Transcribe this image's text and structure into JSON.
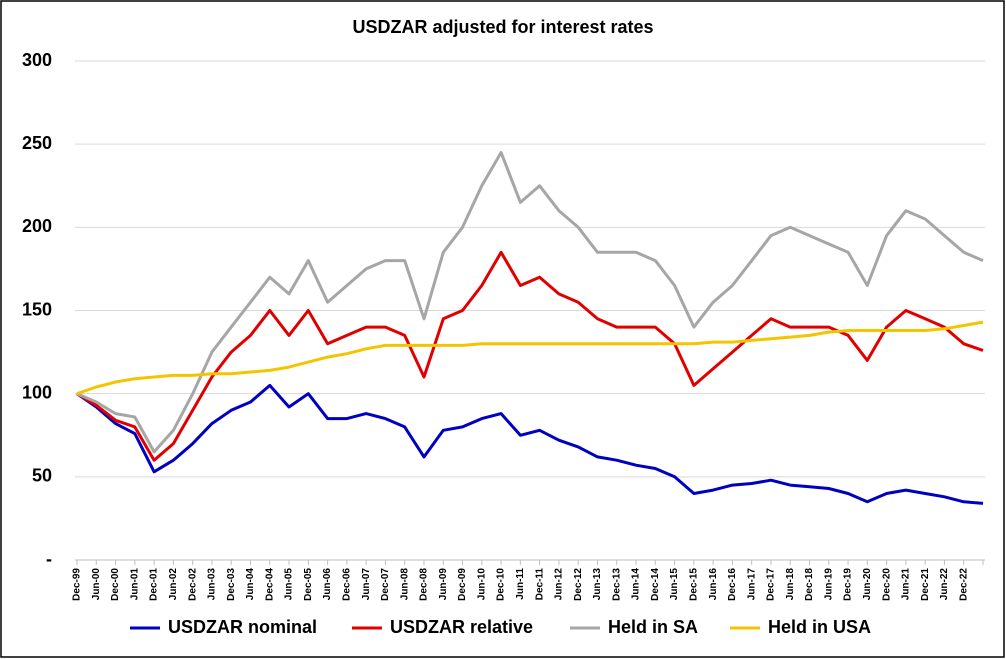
{
  "chart_data": {
    "type": "line",
    "title": "USDZAR adjusted for interest rates",
    "categories": [
      "Dec-99",
      "Jun-00",
      "Dec-00",
      "Jun-01",
      "Dec-01",
      "Jun-02",
      "Dec-02",
      "Jun-03",
      "Dec-03",
      "Jun-04",
      "Dec-04",
      "Jun-05",
      "Dec-05",
      "Jun-06",
      "Dec-06",
      "Jun-07",
      "Dec-07",
      "Jun-08",
      "Dec-08",
      "Jun-09",
      "Dec-09",
      "Jun-10",
      "Dec-10",
      "Jun-11",
      "Dec-11",
      "Jun-12",
      "Dec-12",
      "Jun-13",
      "Dec-13",
      "Jun-14",
      "Dec-14",
      "Jun-15",
      "Dec-15",
      "Jun-16",
      "Dec-16",
      "Jun-17",
      "Dec-17",
      "Jun-18",
      "Dec-18",
      "Jun-19",
      "Dec-19",
      "Jun-20",
      "Dec-20",
      "Jun-21",
      "Dec-21",
      "Jun-22",
      "Dec-22",
      null
    ],
    "series": [
      {
        "name": "USDZAR nominal",
        "color": "#0000c0",
        "values": [
          100,
          92,
          82,
          76,
          53,
          60,
          70,
          82,
          90,
          95,
          105,
          92,
          100,
          85,
          85,
          88,
          85,
          80,
          62,
          78,
          80,
          85,
          88,
          75,
          78,
          72,
          68,
          62,
          60,
          57,
          55,
          50,
          40,
          42,
          45,
          46,
          48,
          45,
          44,
          43,
          40,
          35,
          40,
          42,
          40,
          38,
          35,
          34
        ]
      },
      {
        "name": "USDZAR relative",
        "color": "#e00000",
        "values": [
          100,
          93,
          84,
          80,
          60,
          70,
          90,
          110,
          125,
          135,
          150,
          135,
          150,
          130,
          135,
          140,
          140,
          135,
          110,
          145,
          150,
          165,
          185,
          165,
          170,
          160,
          155,
          145,
          140,
          140,
          140,
          130,
          105,
          115,
          125,
          135,
          145,
          140,
          140,
          140,
          135,
          120,
          140,
          150,
          145,
          140,
          130,
          126
        ]
      },
      {
        "name": "Held in SA",
        "color": "#a6a6a6",
        "values": [
          100,
          95,
          88,
          86,
          65,
          78,
          100,
          125,
          140,
          155,
          170,
          160,
          180,
          155,
          165,
          175,
          180,
          180,
          145,
          185,
          200,
          225,
          245,
          215,
          225,
          210,
          200,
          185,
          185,
          185,
          180,
          165,
          140,
          155,
          165,
          180,
          195,
          200,
          195,
          190,
          185,
          165,
          195,
          210,
          205,
          195,
          185,
          180
        ]
      },
      {
        "name": "Held in USA",
        "color": "#f5c400",
        "values": [
          100,
          104,
          107,
          109,
          110,
          111,
          111,
          112,
          112,
          113,
          114,
          116,
          119,
          122,
          124,
          127,
          129,
          129,
          129,
          129,
          129,
          130,
          130,
          130,
          130,
          130,
          130,
          130,
          130,
          130,
          130,
          130,
          130,
          131,
          131,
          132,
          133,
          134,
          135,
          137,
          138,
          138,
          138,
          138,
          138,
          139,
          141,
          143
        ]
      }
    ],
    "ylim": [
      0,
      300
    ],
    "yticks": [
      {
        "value": 0,
        "label": "-"
      },
      50,
      100,
      150,
      200,
      250,
      300
    ],
    "grid": true,
    "legend": "bottom"
  }
}
